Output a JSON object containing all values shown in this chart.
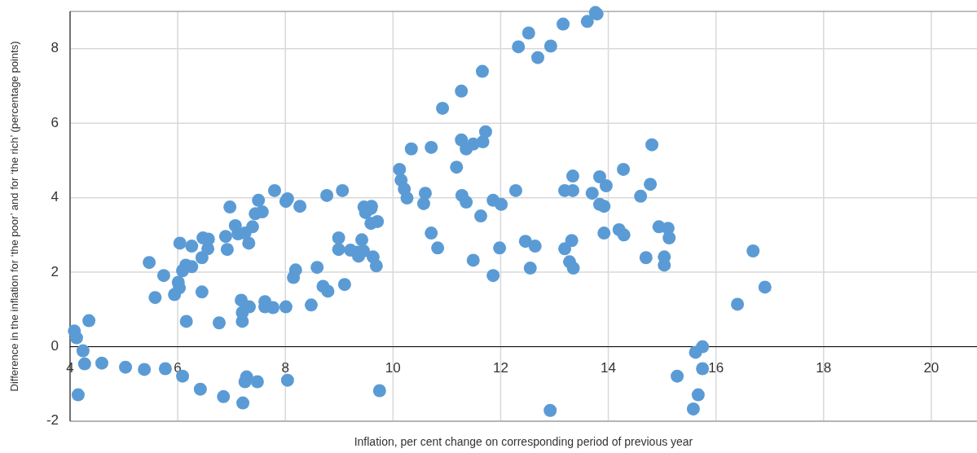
{
  "chart_data": {
    "type": "scatter",
    "xlabel": "Inflation, per cent change on corresponding period of previous year",
    "ylabel": "Difference in the inflation for ‘the poor’ and for ‘the rich’ (percentage points)",
    "xlim": [
      4,
      20.85
    ],
    "ylim": [
      -2,
      9
    ],
    "xticks": [
      4,
      6,
      8,
      10,
      12,
      14,
      16,
      18,
      20
    ],
    "yticks": [
      -2,
      0,
      2,
      4,
      6,
      8
    ],
    "grid": true,
    "marker": "circle",
    "series": [
      {
        "color": "#5b9bd5",
        "x": [
          4.08,
          4.12,
          4.24,
          4.27,
          4.35,
          4.15,
          4.59,
          5.03,
          5.38,
          5.77,
          6.09,
          6.42,
          6.85,
          7.21,
          7.25,
          7.28,
          7.48,
          8.04,
          9.75,
          5.47,
          5.58,
          5.74,
          5.94,
          6.01,
          6.04,
          6.03,
          6.09,
          6.15,
          6.26,
          6.26,
          6.16,
          6.45,
          6.45,
          6.47,
          6.56,
          6.57,
          6.77,
          6.89,
          6.97,
          6.92,
          7.07,
          7.12,
          7.18,
          7.2,
          7.2,
          7.33,
          7.32,
          7.25,
          7.39,
          7.44,
          7.5,
          7.57,
          7.62,
          7.62,
          7.77,
          7.8,
          8.01,
          8.04,
          8.01,
          8.27,
          8.15,
          8.19,
          8.48,
          8.59,
          8.7,
          8.79,
          8.77,
          9.06,
          9.1,
          8.99,
          8.99,
          9.21,
          9.34,
          9.36,
          9.42,
          9.45,
          9.46,
          9.49,
          9.59,
          9.6,
          9.59,
          9.71,
          9.63,
          9.69,
          10.12,
          10.15,
          10.21,
          10.26,
          10.34,
          10.6,
          10.57,
          10.71,
          10.71,
          10.83,
          10.92,
          11.18,
          11.27,
          11.27,
          11.28,
          11.36,
          11.36,
          11.49,
          11.49,
          11.63,
          11.66,
          11.67,
          11.72,
          11.86,
          11.86,
          12.01,
          11.98,
          12.33,
          12.28,
          12.46,
          12.52,
          12.55,
          12.64,
          12.69,
          12.93,
          12.92,
          13.16,
          13.19,
          13.19,
          13.28,
          13.34,
          13.35,
          13.32,
          13.34,
          13.61,
          13.7,
          13.79,
          13.76,
          13.84,
          13.84,
          13.96,
          13.92,
          13.92,
          14.2,
          14.29,
          14.28,
          14.6,
          14.7,
          14.78,
          14.81,
          14.94,
          15.04,
          15.04,
          15.11,
          15.13,
          15.28,
          15.58,
          15.62,
          15.67,
          15.75,
          15.75,
          16.4,
          16.69,
          16.91
        ],
        "values": [
          0.42,
          0.24,
          -0.11,
          -0.46,
          0.7,
          -1.29,
          -0.44,
          -0.55,
          -0.61,
          -0.59,
          -0.79,
          -1.14,
          -1.34,
          -1.51,
          -0.94,
          -0.81,
          -0.94,
          -0.9,
          -1.18,
          2.26,
          1.32,
          1.91,
          1.4,
          1.73,
          2.78,
          1.58,
          2.04,
          2.19,
          2.15,
          2.7,
          0.68,
          1.47,
          2.39,
          2.92,
          2.63,
          2.89,
          0.64,
          2.96,
          3.75,
          2.61,
          3.25,
          3.03,
          1.25,
          0.68,
          0.92,
          1.07,
          2.78,
          3.05,
          3.22,
          3.57,
          3.93,
          3.62,
          1.07,
          1.21,
          1.05,
          4.19,
          3.9,
          3.97,
          1.07,
          3.77,
          1.86,
          2.06,
          1.12,
          2.13,
          1.62,
          1.49,
          4.06,
          4.19,
          1.67,
          2.92,
          2.61,
          2.59,
          2.54,
          2.43,
          2.87,
          2.57,
          3.75,
          3.6,
          3.71,
          3.77,
          3.31,
          3.36,
          2.41,
          2.17,
          4.76,
          4.47,
          4.23,
          3.99,
          5.31,
          4.12,
          3.84,
          5.35,
          3.05,
          2.65,
          6.4,
          4.82,
          6.86,
          5.55,
          4.06,
          5.31,
          3.88,
          5.44,
          2.32,
          3.51,
          7.39,
          5.5,
          5.77,
          3.93,
          1.91,
          3.82,
          2.65,
          8.05,
          4.19,
          2.83,
          8.42,
          2.11,
          2.7,
          7.76,
          8.07,
          -1.71,
          8.66,
          4.19,
          2.63,
          2.28,
          4.19,
          2.11,
          2.85,
          4.58,
          8.73,
          4.12,
          8.93,
          8.97,
          3.82,
          4.56,
          4.32,
          3.77,
          3.05,
          3.14,
          3.0,
          4.76,
          4.04,
          2.39,
          4.36,
          5.42,
          3.22,
          2.41,
          2.19,
          3.18,
          2.92,
          -0.79,
          -1.67,
          -0.15,
          -1.29,
          0.0,
          -0.59,
          1.14,
          2.57,
          1.6
        ]
      }
    ]
  }
}
